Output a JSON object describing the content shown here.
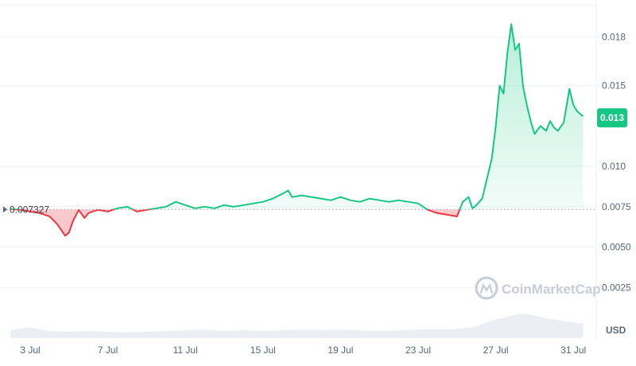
{
  "watermark": {
    "brand": "CoinMarketCap"
  },
  "currency_label": "USD",
  "colors": {
    "up": "#16c784",
    "down": "#ea3943",
    "up_fill": "#16c784",
    "down_fill": "#ea3943",
    "grid": "#eff2f5",
    "text": "#58667e",
    "watermark": "#c8cdd6"
  },
  "chart_data": {
    "type": "area",
    "title": "",
    "xlabel": "",
    "ylabel": "",
    "baseline": {
      "value": 0.007327,
      "label": "0.007327"
    },
    "current": {
      "value": 0.013,
      "label": "0.013"
    },
    "ylim": [
      0.0,
      0.0203
    ],
    "yticks": [
      {
        "value": 0.0025,
        "label": "0.0025"
      },
      {
        "value": 0.005,
        "label": "0.0050"
      },
      {
        "value": 0.0075,
        "label": "0.0075"
      },
      {
        "value": 0.01,
        "label": "0.010"
      },
      {
        "value": 0.015,
        "label": "0.015"
      },
      {
        "value": 0.018,
        "label": "0.018"
      }
    ],
    "xticks": [
      {
        "day": 3,
        "label": "3 Jul"
      },
      {
        "day": 7,
        "label": "7 Jul"
      },
      {
        "day": 11,
        "label": "11 Jul"
      },
      {
        "day": 15,
        "label": "15 Jul"
      },
      {
        "day": 19,
        "label": "19 Jul"
      },
      {
        "day": 23,
        "label": "23 Jul"
      },
      {
        "day": 27,
        "label": "27 Jul"
      },
      {
        "day": 31,
        "label": "31 Jul"
      }
    ],
    "xlim": [
      2.0,
      31.5
    ],
    "series": [
      {
        "x": [
          2.0,
          2.5,
          3.0,
          3.5,
          4.0,
          4.4,
          4.8,
          5.0,
          5.2,
          5.5,
          5.8,
          6.0,
          6.2,
          6.5,
          7.0,
          7.5,
          8.0,
          8.5,
          9.0,
          9.5,
          10.0,
          10.5,
          11.0,
          11.5,
          12.0,
          12.5,
          13.0,
          13.5,
          14.0,
          14.5,
          15.0,
          15.5,
          16.0,
          16.3,
          16.5,
          17.0,
          17.5,
          18.0,
          18.5,
          19.0,
          19.5,
          20.0,
          20.5,
          21.0,
          21.5,
          22.0,
          22.5,
          23.0,
          23.5,
          24.0,
          24.5,
          25.0,
          25.3,
          25.6,
          25.8,
          26.0,
          26.3,
          26.6,
          26.8,
          27.0,
          27.2,
          27.4,
          27.6,
          27.8,
          28.0,
          28.2,
          28.4,
          28.6,
          28.8,
          29.0,
          29.3,
          29.6,
          29.8,
          30.0,
          30.2,
          30.5,
          30.8,
          31.0,
          31.2,
          31.5
        ],
        "y": [
          0.00735,
          0.0073,
          0.0072,
          0.0071,
          0.0069,
          0.0064,
          0.0057,
          0.0059,
          0.0066,
          0.0073,
          0.0068,
          0.0071,
          0.0072,
          0.0073,
          0.0072,
          0.0074,
          0.0075,
          0.0072,
          0.0073,
          0.0074,
          0.0075,
          0.0078,
          0.0076,
          0.0074,
          0.0075,
          0.0074,
          0.0076,
          0.0075,
          0.0076,
          0.0077,
          0.0078,
          0.008,
          0.0083,
          0.0085,
          0.0081,
          0.0082,
          0.0081,
          0.008,
          0.0079,
          0.0081,
          0.0079,
          0.0078,
          0.008,
          0.0079,
          0.0078,
          0.0079,
          0.0078,
          0.0077,
          0.0073,
          0.0071,
          0.007,
          0.0069,
          0.0078,
          0.0081,
          0.0074,
          0.0076,
          0.008,
          0.0095,
          0.0105,
          0.0125,
          0.015,
          0.0145,
          0.017,
          0.0188,
          0.0172,
          0.0176,
          0.015,
          0.0138,
          0.0128,
          0.012,
          0.0125,
          0.0122,
          0.0128,
          0.0124,
          0.0122,
          0.0127,
          0.0148,
          0.0138,
          0.0134,
          0.0131
        ]
      }
    ],
    "volume": {
      "x": [
        2.0,
        3.0,
        4.0,
        5.0,
        6.0,
        7.0,
        8.0,
        9.0,
        10.0,
        11.0,
        12.0,
        13.0,
        14.0,
        15.0,
        16.0,
        17.0,
        18.0,
        19.0,
        20.0,
        21.0,
        22.0,
        23.0,
        24.0,
        25.0,
        26.0,
        26.5,
        27.0,
        27.5,
        28.0,
        28.5,
        29.0,
        29.5,
        30.0,
        30.5,
        31.0,
        31.5
      ],
      "y": [
        0.0012,
        0.0015,
        0.001,
        0.0009,
        0.001,
        0.0009,
        0.0008,
        0.0009,
        0.001,
        0.0011,
        0.0012,
        0.001,
        0.0011,
        0.001,
        0.0011,
        0.0012,
        0.0011,
        0.0012,
        0.0011,
        0.001,
        0.0011,
        0.0012,
        0.0012,
        0.0013,
        0.0016,
        0.0022,
        0.0026,
        0.0029,
        0.0033,
        0.0034,
        0.0032,
        0.0028,
        0.0026,
        0.0024,
        0.0022,
        0.0021
      ]
    }
  }
}
